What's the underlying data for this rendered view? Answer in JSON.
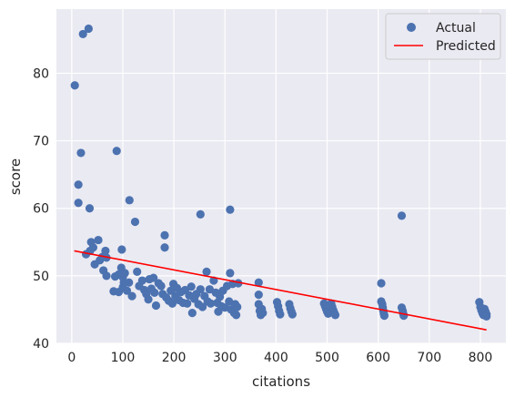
{
  "chart_data": {
    "type": "scatter",
    "xlabel": "citations",
    "ylabel": "score",
    "xlim": [
      -30,
      850
    ],
    "ylim": [
      40,
      89.5
    ],
    "xticks": [
      0,
      100,
      200,
      300,
      400,
      500,
      600,
      700,
      800
    ],
    "yticks": [
      40,
      50,
      60,
      70,
      80
    ],
    "grid": true,
    "legend_position": "top-right",
    "colors": {
      "background": "#eaeaf2",
      "grid": "#ffffff",
      "actual": "#4c72b0",
      "predicted": "#ff0000"
    },
    "series": [
      {
        "name": "Actual",
        "kind": "scatter",
        "points": [
          [
            6,
            78.2
          ],
          [
            22,
            85.8
          ],
          [
            33,
            86.6
          ],
          [
            13,
            63.5
          ],
          [
            18,
            68.2
          ],
          [
            13,
            60.8
          ],
          [
            35,
            60.0
          ],
          [
            38,
            55.0
          ],
          [
            52,
            55.3
          ],
          [
            28,
            53.2
          ],
          [
            36,
            53.7
          ],
          [
            42,
            54.2
          ],
          [
            45,
            51.7
          ],
          [
            55,
            52.3
          ],
          [
            60,
            52.8
          ],
          [
            66,
            53.7
          ],
          [
            68,
            52.7
          ],
          [
            62,
            50.8
          ],
          [
            68,
            50.0
          ],
          [
            88,
            68.5
          ],
          [
            85,
            49.9
          ],
          [
            92,
            50.2
          ],
          [
            98,
            53.9
          ],
          [
            97,
            51.2
          ],
          [
            100,
            49.8
          ],
          [
            104,
            50.4
          ],
          [
            102,
            49.0
          ],
          [
            82,
            47.7
          ],
          [
            92,
            47.6
          ],
          [
            100,
            48.3
          ],
          [
            108,
            47.8
          ],
          [
            113,
            61.2
          ],
          [
            124,
            58.0
          ],
          [
            112,
            49.0
          ],
          [
            118,
            47.0
          ],
          [
            128,
            50.6
          ],
          [
            132,
            48.5
          ],
          [
            138,
            49.3
          ],
          [
            142,
            47.9
          ],
          [
            146,
            47.3
          ],
          [
            150,
            46.5
          ],
          [
            152,
            49.5
          ],
          [
            156,
            48.1
          ],
          [
            160,
            49.7
          ],
          [
            162,
            47.5
          ],
          [
            165,
            45.6
          ],
          [
            170,
            48.9
          ],
          [
            175,
            48.5
          ],
          [
            178,
            47.3
          ],
          [
            182,
            56.0
          ],
          [
            182,
            54.2
          ],
          [
            185,
            46.8
          ],
          [
            190,
            46.3
          ],
          [
            194,
            47.8
          ],
          [
            197,
            45.9
          ],
          [
            199,
            48.8
          ],
          [
            203,
            47.0
          ],
          [
            206,
            48.2
          ],
          [
            210,
            46.4
          ],
          [
            214,
            47.6
          ],
          [
            218,
            46.0
          ],
          [
            222,
            47.9
          ],
          [
            226,
            45.9
          ],
          [
            230,
            47.1
          ],
          [
            234,
            48.4
          ],
          [
            236,
            44.5
          ],
          [
            240,
            46.6
          ],
          [
            244,
            47.3
          ],
          [
            248,
            45.8
          ],
          [
            252,
            59.1
          ],
          [
            252,
            48.0
          ],
          [
            256,
            45.4
          ],
          [
            260,
            47.0
          ],
          [
            264,
            50.6
          ],
          [
            266,
            46.2
          ],
          [
            270,
            48.0
          ],
          [
            272,
            45.9
          ],
          [
            278,
            49.3
          ],
          [
            282,
            47.5
          ],
          [
            285,
            46.0
          ],
          [
            287,
            44.7
          ],
          [
            290,
            46.9
          ],
          [
            293,
            45.5
          ],
          [
            296,
            47.8
          ],
          [
            300,
            45.3
          ],
          [
            304,
            48.5
          ],
          [
            308,
            46.2
          ],
          [
            310,
            59.8
          ],
          [
            310,
            50.4
          ],
          [
            312,
            45.0
          ],
          [
            315,
            48.8
          ],
          [
            318,
            44.5
          ],
          [
            320,
            45.8
          ],
          [
            322,
            44.2
          ],
          [
            324,
            45.4
          ],
          [
            326,
            48.9
          ],
          [
            366,
            49.0
          ],
          [
            366,
            47.2
          ],
          [
            366,
            45.8
          ],
          [
            368,
            44.8
          ],
          [
            370,
            44.2
          ],
          [
            372,
            45.1
          ],
          [
            374,
            44.5
          ],
          [
            402,
            46.1
          ],
          [
            404,
            45.5
          ],
          [
            406,
            44.8
          ],
          [
            408,
            44.3
          ],
          [
            426,
            45.8
          ],
          [
            428,
            45.2
          ],
          [
            430,
            44.7
          ],
          [
            432,
            44.3
          ],
          [
            494,
            45.9
          ],
          [
            496,
            45.5
          ],
          [
            498,
            45.1
          ],
          [
            500,
            44.7
          ],
          [
            502,
            44.4
          ],
          [
            504,
            45.6
          ],
          [
            508,
            45.9
          ],
          [
            510,
            45.4
          ],
          [
            512,
            44.9
          ],
          [
            514,
            44.5
          ],
          [
            516,
            44.2
          ],
          [
            606,
            48.9
          ],
          [
            606,
            46.2
          ],
          [
            608,
            45.8
          ],
          [
            609,
            45.3
          ],
          [
            610,
            44.8
          ],
          [
            611,
            44.4
          ],
          [
            612,
            44.1
          ],
          [
            646,
            58.9
          ],
          [
            646,
            45.3
          ],
          [
            648,
            44.8
          ],
          [
            649,
            44.4
          ],
          [
            650,
            44.1
          ],
          [
            798,
            46.1
          ],
          [
            800,
            45.4
          ],
          [
            802,
            44.9
          ],
          [
            804,
            44.5
          ],
          [
            806,
            44.2
          ],
          [
            808,
            45.1
          ],
          [
            810,
            44.7
          ],
          [
            812,
            44.3
          ],
          [
            812,
            44.0
          ]
        ]
      },
      {
        "name": "Predicted",
        "kind": "line",
        "points": [
          [
            5,
            53.7
          ],
          [
            812,
            42.0
          ]
        ]
      }
    ]
  }
}
